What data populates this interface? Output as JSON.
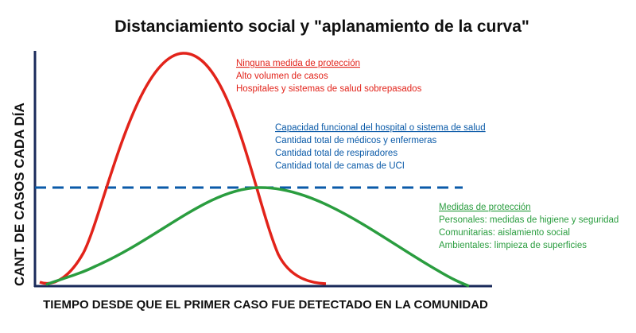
{
  "title": "Distanciamiento social y \"aplanamiento de la curva\"",
  "y_axis_label": "CANT. DE CASOS CADA DÍA",
  "x_axis_label": "TIEMPO DESDE QUE EL PRIMER CASO FUE DETECTADO EN LA COMUNIDAD",
  "annotations": [
    {
      "heading": "Ninguna medida de protección",
      "lines": [
        "Alto volumen de casos",
        "Hospitales y sistemas de salud sobrepasados"
      ]
    },
    {
      "heading": "Capacidad funcional del hospital o sistema de salud",
      "lines": [
        "Cantidad total de médicos y enfermeras",
        "Cantidad total de respiradores",
        "Cantidad total de camas de UCI"
      ]
    },
    {
      "heading": "Medidas de protección",
      "lines": [
        "Personales: medidas de higiene y seguridad",
        "Comunitarias: aislamiento social",
        "Ambientales: limpieza de superficies"
      ]
    }
  ]
}
